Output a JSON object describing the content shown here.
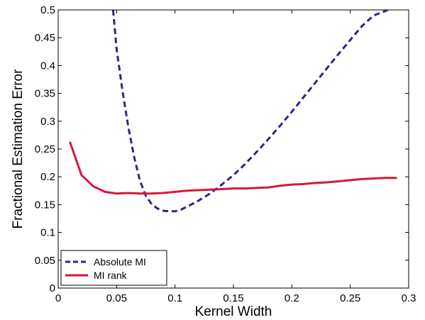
{
  "chart_data": {
    "type": "line",
    "xlabel": "Kernel Width",
    "ylabel": "Fractional Estimation Error",
    "xlim": [
      0,
      0.3
    ],
    "ylim": [
      0,
      0.5
    ],
    "xticks": [
      0,
      0.05,
      0.1,
      0.15,
      0.2,
      0.25,
      0.3
    ],
    "yticks": [
      0,
      0.05,
      0.1,
      0.15,
      0.2,
      0.25,
      0.3,
      0.35,
      0.4,
      0.45,
      0.5
    ],
    "xtick_labels": [
      "0",
      "0.05",
      "0.1",
      "0.15",
      "0.2",
      "0.25",
      "0.3"
    ],
    "ytick_labels": [
      "0",
      "0.05",
      "0.1",
      "0.15",
      "0.2",
      "0.25",
      "0.3",
      "0.35",
      "0.4",
      "0.45",
      "0.5"
    ],
    "grid": false,
    "legend_position": "bottom-left",
    "series": [
      {
        "name": "Absolute MI",
        "color": "#3a1f8c",
        "style": "dashed",
        "x": [
          0.047,
          0.05,
          0.055,
          0.06,
          0.065,
          0.07,
          0.075,
          0.08,
          0.085,
          0.09,
          0.095,
          0.1,
          0.105,
          0.11,
          0.12,
          0.13,
          0.14,
          0.15,
          0.16,
          0.17,
          0.18,
          0.19,
          0.2,
          0.21,
          0.22,
          0.23,
          0.24,
          0.25,
          0.26,
          0.27,
          0.28,
          0.282
        ],
        "y": [
          0.5,
          0.43,
          0.355,
          0.29,
          0.236,
          0.193,
          0.166,
          0.151,
          0.143,
          0.139,
          0.138,
          0.138,
          0.141,
          0.146,
          0.157,
          0.17,
          0.186,
          0.203,
          0.223,
          0.245,
          0.268,
          0.292,
          0.317,
          0.343,
          0.369,
          0.395,
          0.421,
          0.446,
          0.471,
          0.49,
          0.498,
          0.5
        ]
      },
      {
        "name": "MI rank",
        "color": "#d8163c",
        "style": "solid",
        "x": [
          0.01,
          0.02,
          0.03,
          0.04,
          0.05,
          0.06,
          0.07,
          0.08,
          0.09,
          0.1,
          0.11,
          0.12,
          0.13,
          0.14,
          0.15,
          0.16,
          0.17,
          0.18,
          0.19,
          0.2,
          0.21,
          0.22,
          0.23,
          0.24,
          0.25,
          0.26,
          0.27,
          0.28,
          0.29
        ],
        "y": [
          0.263,
          0.203,
          0.183,
          0.173,
          0.17,
          0.171,
          0.17,
          0.17,
          0.171,
          0.173,
          0.175,
          0.176,
          0.177,
          0.178,
          0.179,
          0.179,
          0.18,
          0.181,
          0.184,
          0.186,
          0.187,
          0.189,
          0.19,
          0.192,
          0.194,
          0.196,
          0.197,
          0.198,
          0.198
        ]
      }
    ]
  }
}
